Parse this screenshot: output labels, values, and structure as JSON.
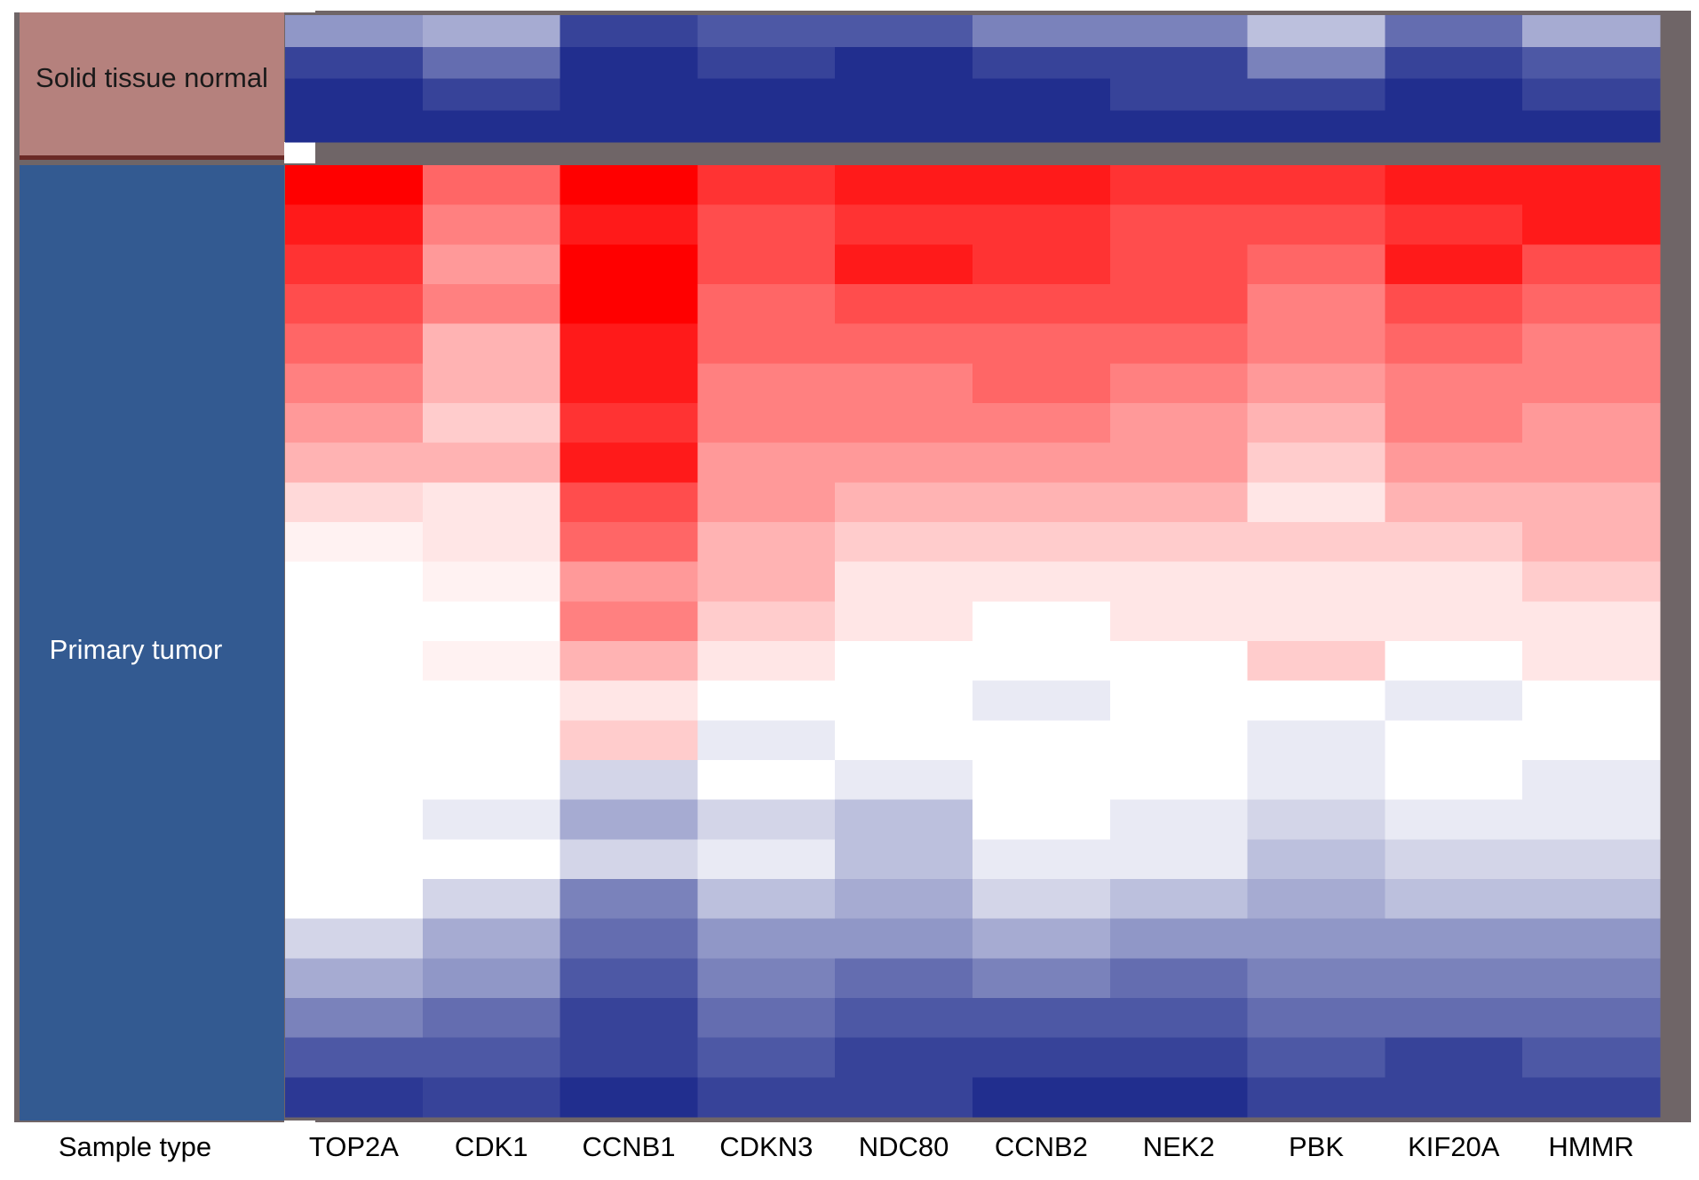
{
  "chart_data": {
    "type": "heatmap",
    "x_label": "Sample type",
    "categories": [
      "TOP2A",
      "CDK1",
      "CCNB1",
      "CDKN3",
      "NDC80",
      "CCNB2",
      "NEK2",
      "PBK",
      "KIF20A",
      "HMMR"
    ],
    "zlim": [
      -1,
      1
    ],
    "low_color": "#212e8e",
    "mid_color": "#ffffff",
    "high_color": "#ff0000",
    "groups": [
      {
        "name": "Solid tissue normal",
        "color": "#b5817d",
        "text_color": "#1a1a1a",
        "values": [
          [
            -0.5,
            -0.9,
            -1,
            -1
          ],
          [
            -0.4,
            -0.7,
            -0.9,
            -1
          ],
          [
            -0.9,
            -1,
            -1,
            -1
          ],
          [
            -0.8,
            -0.9,
            -1,
            -1
          ],
          [
            -0.8,
            -1,
            -1,
            -1
          ],
          [
            -0.6,
            -0.9,
            -1,
            -1
          ],
          [
            -0.6,
            -0.9,
            -0.9,
            -1
          ],
          [
            -0.3,
            -0.6,
            -0.9,
            -1
          ],
          [
            -0.7,
            -0.9,
            -1,
            -1
          ],
          [
            -0.4,
            -0.8,
            -0.9,
            -1
          ]
        ]
      },
      {
        "name": "Primary tumor",
        "color": "#335a91",
        "text_color": "#ffffff",
        "values": [
          [
            1,
            0.9,
            0.8,
            0.7,
            0.6,
            0.5,
            0.4,
            0.3,
            0.15,
            0.05,
            0,
            0,
            0,
            0,
            0,
            0,
            0,
            0,
            0,
            -0.2,
            -0.4,
            -0.6,
            -0.8,
            -0.95
          ],
          [
            0.6,
            0.5,
            0.4,
            0.5,
            0.3,
            0.3,
            0.2,
            0.3,
            0.1,
            0.1,
            0.05,
            0,
            0.05,
            0,
            0,
            0,
            -0.1,
            0,
            -0.2,
            -0.4,
            -0.5,
            -0.7,
            -0.8,
            -0.9
          ],
          [
            1,
            0.9,
            1,
            1,
            0.9,
            0.9,
            0.8,
            0.9,
            0.7,
            0.6,
            0.4,
            0.5,
            0.3,
            0.1,
            0.2,
            -0.2,
            -0.4,
            -0.2,
            -0.6,
            -0.7,
            -0.8,
            -0.9,
            -0.9,
            -1
          ],
          [
            0.8,
            0.7,
            0.7,
            0.6,
            0.6,
            0.5,
            0.5,
            0.4,
            0.4,
            0.3,
            0.3,
            0.2,
            0.1,
            0,
            -0.1,
            0,
            -0.2,
            -0.1,
            -0.3,
            -0.5,
            -0.6,
            -0.7,
            -0.8,
            -0.9
          ],
          [
            0.9,
            0.8,
            0.9,
            0.7,
            0.6,
            0.5,
            0.5,
            0.4,
            0.3,
            0.2,
            0.1,
            0.1,
            0,
            0,
            0,
            -0.1,
            -0.3,
            -0.3,
            -0.4,
            -0.5,
            -0.7,
            -0.8,
            -0.9,
            -0.9
          ],
          [
            0.9,
            0.8,
            0.8,
            0.7,
            0.6,
            0.6,
            0.5,
            0.4,
            0.3,
            0.2,
            0.1,
            0,
            0,
            -0.1,
            0,
            0,
            0,
            -0.1,
            -0.2,
            -0.4,
            -0.6,
            -0.8,
            -0.9,
            -1
          ],
          [
            0.8,
            0.7,
            0.7,
            0.7,
            0.6,
            0.5,
            0.4,
            0.4,
            0.3,
            0.2,
            0.1,
            0.1,
            0,
            0,
            0,
            0,
            -0.1,
            -0.1,
            -0.3,
            -0.5,
            -0.7,
            -0.8,
            -0.9,
            -1
          ],
          [
            0.8,
            0.7,
            0.6,
            0.5,
            0.5,
            0.4,
            0.3,
            0.2,
            0.1,
            0.2,
            0.1,
            0.1,
            0.2,
            0,
            -0.1,
            -0.1,
            -0.2,
            -0.3,
            -0.4,
            -0.5,
            -0.6,
            -0.7,
            -0.8,
            -0.9
          ],
          [
            0.9,
            0.8,
            0.9,
            0.7,
            0.6,
            0.5,
            0.5,
            0.4,
            0.3,
            0.2,
            0.1,
            0.1,
            0,
            -0.1,
            0,
            0,
            -0.1,
            -0.2,
            -0.3,
            -0.5,
            -0.6,
            -0.7,
            -0.9,
            -0.9
          ],
          [
            0.9,
            0.9,
            0.7,
            0.6,
            0.5,
            0.5,
            0.4,
            0.4,
            0.3,
            0.3,
            0.2,
            0.1,
            0.1,
            0,
            0,
            -0.1,
            -0.1,
            -0.2,
            -0.3,
            -0.5,
            -0.6,
            -0.7,
            -0.8,
            -0.9
          ]
        ]
      }
    ]
  }
}
